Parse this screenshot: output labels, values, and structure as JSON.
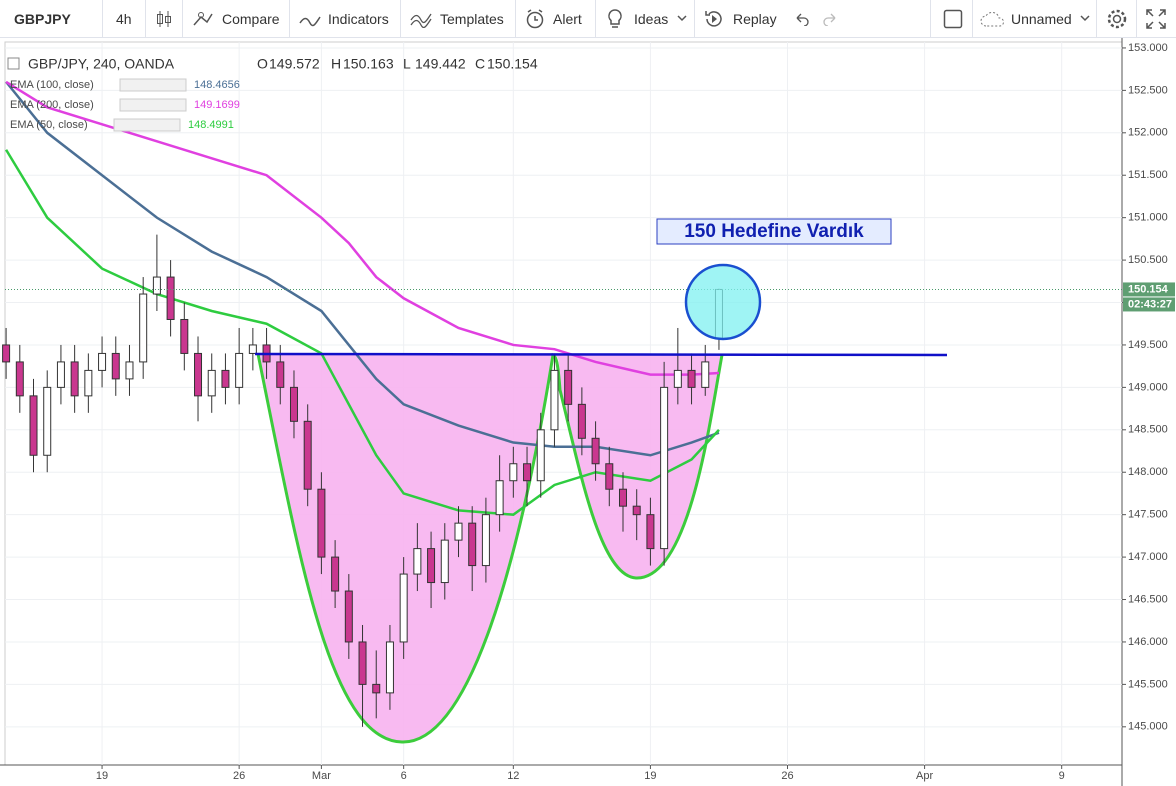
{
  "toolbar": {
    "symbol": "GBPJPY",
    "interval": "4h",
    "compare": "Compare",
    "indicators": "Indicators",
    "templates": "Templates",
    "alert": "Alert",
    "ideas": "Ideas",
    "replay": "Replay",
    "layout_name": "Unnamed"
  },
  "chart_data": {
    "type": "candlestick",
    "title": "GBP/JPY, 240, OANDA",
    "ohlc_labels": [
      "O",
      "H",
      "L",
      "C"
    ],
    "up_color": "#ffffff",
    "down_color": "#c9378f",
    "candle_outline": "#333333",
    "x": [
      -3.5,
      -3,
      -2.5,
      -2,
      -1.5,
      -1,
      -0.5,
      0,
      0.5,
      1,
      1.5,
      2,
      2.5,
      3,
      3.5,
      4,
      4.5,
      5,
      5.5,
      6,
      6.5,
      7,
      7.5,
      8,
      8.5,
      9,
      9.5,
      10,
      10.5,
      11,
      11.5,
      12,
      12.5,
      13,
      13.5,
      14,
      14.5,
      15,
      15.5,
      16,
      16.5,
      17,
      17.5,
      18,
      18.5,
      19,
      19.5,
      20,
      20.5,
      21,
      21.5,
      22,
      22.5
    ],
    "open": [
      149.5,
      149.3,
      148.9,
      148.2,
      149.0,
      149.3,
      148.9,
      149.2,
      149.4,
      149.1,
      149.3,
      150.1,
      150.3,
      149.8,
      149.4,
      148.9,
      149.2,
      149.0,
      149.4,
      149.5,
      149.3,
      149.0,
      148.6,
      147.8,
      147.0,
      146.6,
      146.0,
      145.5,
      145.4,
      146.0,
      146.8,
      147.1,
      146.7,
      147.2,
      147.4,
      146.9,
      147.5,
      147.9,
      148.1,
      147.9,
      148.5,
      149.2,
      148.8,
      148.4,
      148.1,
      147.8,
      147.6,
      147.5,
      147.1,
      149.0,
      149.2,
      149.0,
      149.572
    ],
    "high": [
      149.7,
      149.5,
      149.1,
      149.2,
      149.5,
      149.5,
      149.4,
      149.6,
      149.6,
      149.5,
      150.3,
      150.8,
      150.5,
      150.0,
      149.6,
      149.4,
      149.4,
      149.7,
      149.7,
      149.7,
      149.5,
      149.2,
      148.8,
      148.0,
      147.2,
      146.8,
      146.2,
      145.9,
      146.2,
      147.0,
      147.4,
      147.3,
      147.4,
      147.6,
      147.6,
      147.7,
      148.2,
      148.3,
      148.3,
      148.7,
      149.4,
      149.4,
      149.0,
      148.6,
      148.3,
      148.0,
      147.8,
      147.7,
      149.3,
      149.7,
      149.4,
      149.5,
      150.163
    ],
    "low": [
      149.1,
      148.7,
      148.0,
      148.0,
      148.8,
      148.7,
      148.7,
      149.0,
      148.9,
      148.9,
      149.1,
      149.9,
      149.6,
      149.2,
      148.6,
      148.7,
      148.8,
      148.8,
      149.2,
      149.1,
      148.8,
      148.4,
      147.6,
      146.8,
      146.4,
      145.8,
      145.0,
      145.1,
      145.2,
      145.8,
      146.6,
      146.4,
      146.5,
      147.0,
      146.6,
      146.7,
      147.3,
      147.7,
      147.6,
      147.7,
      148.3,
      148.6,
      148.2,
      147.9,
      147.6,
      147.3,
      147.2,
      146.9,
      146.9,
      148.8,
      148.8,
      148.9,
      149.442
    ],
    "close": [
      149.3,
      148.9,
      148.2,
      149.0,
      149.3,
      148.9,
      149.2,
      149.4,
      149.1,
      149.3,
      150.1,
      150.3,
      149.8,
      149.4,
      148.9,
      149.2,
      149.0,
      149.4,
      149.5,
      149.3,
      149.0,
      148.6,
      147.8,
      147.0,
      146.6,
      146.0,
      145.5,
      145.4,
      146.0,
      146.8,
      147.1,
      146.7,
      147.2,
      147.4,
      146.9,
      147.5,
      147.9,
      148.1,
      147.9,
      148.5,
      149.2,
      148.8,
      148.4,
      148.1,
      147.8,
      147.6,
      147.5,
      147.1,
      149.0,
      149.2,
      149.0,
      149.3,
      150.154
    ],
    "countdown": "02:43:27",
    "series": [
      {
        "name": "EMA (100, close)",
        "color": "#4b6f95",
        "x": [
          -3.5,
          -2,
          0,
          2,
          4,
          6,
          8,
          9,
          10,
          11,
          13,
          15,
          16.5,
          18,
          20,
          21.5,
          22.5
        ],
        "values": [
          152.6,
          152.0,
          151.5,
          151.0,
          150.6,
          150.3,
          149.9,
          149.5,
          149.1,
          148.8,
          148.55,
          148.35,
          148.3,
          148.3,
          148.2,
          148.35,
          148.4656
        ]
      },
      {
        "name": "EMA (200, close)",
        "color": "#e040e0",
        "x": [
          -3.5,
          -2,
          0,
          2,
          4,
          6,
          8,
          9,
          10,
          11,
          13,
          15,
          16.5,
          18,
          20,
          21.5,
          22.5
        ],
        "values": [
          152.6,
          152.3,
          152.1,
          151.9,
          151.7,
          151.5,
          151.0,
          150.7,
          150.3,
          150.05,
          149.7,
          149.5,
          149.45,
          149.3,
          149.15,
          149.15,
          149.1699
        ]
      },
      {
        "name": "EMA (50, close)",
        "color": "#2ecc40",
        "x": [
          -3.5,
          -2,
          0,
          2,
          4,
          6,
          8,
          9,
          10,
          11,
          13,
          15,
          16.5,
          18,
          20,
          21.5,
          22.5
        ],
        "values": [
          151.8,
          151.0,
          150.4,
          150.1,
          149.9,
          149.75,
          149.4,
          148.8,
          148.2,
          147.75,
          147.55,
          147.5,
          147.85,
          148.0,
          147.9,
          148.15,
          148.4991
        ]
      }
    ],
    "annotation": "150 Hedefine Vardık",
    "xlim": [
      -3.54,
      37.2
    ],
    "ylim": [
      144.55,
      153.07
    ],
    "xticks": [
      {
        "value": 0,
        "label": "19"
      },
      {
        "value": 5,
        "label": "26"
      },
      {
        "value": 8,
        "label": "Mar"
      },
      {
        "value": 11,
        "label": "6"
      },
      {
        "value": 15,
        "label": "12"
      },
      {
        "value": 20,
        "label": "19"
      },
      {
        "value": 25,
        "label": "26"
      },
      {
        "value": 30,
        "label": "Apr"
      },
      {
        "value": 35,
        "label": "9"
      }
    ],
    "yticks": [
      {
        "value": 145,
        "label": "145.000"
      },
      {
        "value": 145.5,
        "label": "145.500"
      },
      {
        "value": 146,
        "label": "146.000"
      },
      {
        "value": 146.5,
        "label": "146.500"
      },
      {
        "value": 147,
        "label": "147.000"
      },
      {
        "value": 147.5,
        "label": "147.500"
      },
      {
        "value": 148,
        "label": "148.000"
      },
      {
        "value": 148.5,
        "label": "148.500"
      },
      {
        "value": 149,
        "label": "149.000"
      },
      {
        "value": 149.5,
        "label": "149.500"
      },
      {
        "value": 150,
        "label": "150.000"
      },
      {
        "value": 150.5,
        "label": "150.500"
      },
      {
        "value": 151,
        "label": "151.000"
      },
      {
        "value": 151.5,
        "label": "151.500"
      },
      {
        "value": 152,
        "label": "152.000"
      },
      {
        "value": 152.5,
        "label": "152.500"
      },
      {
        "value": 153,
        "label": "153.000"
      }
    ],
    "grid": true
  }
}
